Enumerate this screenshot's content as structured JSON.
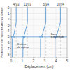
{
  "chart_data": {
    "type": "line",
    "xlabel": "Déplacement (cm)",
    "ylabel": "Profondeur par rapport au terrain naturel",
    "xlim": [
      0,
      5
    ],
    "ylim": [
      8.5,
      0
    ],
    "xticks": [
      0,
      1,
      2,
      3,
      4,
      5
    ],
    "yticks": [
      0,
      1,
      2,
      3,
      4,
      5,
      6,
      7,
      8
    ],
    "x2ticks": [
      {
        "value": 0.45,
        "label": "4/93"
      },
      {
        "value": 1.45,
        "label": "11/93"
      },
      {
        "value": 3.1,
        "label": "6/94"
      },
      {
        "value": 4.4,
        "label": "10/94"
      }
    ],
    "grid": true,
    "reference_line": {
      "y": 5.0,
      "color": "#5b9bd5"
    },
    "annotations": [
      {
        "text": "Surface\nde rupture",
        "x": 0.55,
        "y": 6.1
      },
      {
        "text": "Barre\nd'incertitude",
        "x": 3.55,
        "y": 4.3
      }
    ],
    "series": [
      {
        "color": "#5b9bd5",
        "x": [
          0.45,
          0.45,
          0.45,
          0.45,
          0.45,
          0.45,
          0.4,
          0.35,
          0.3,
          0.25,
          0.15,
          0.1,
          0.1,
          0.1,
          0.1,
          0.1,
          0.1,
          0.1
        ],
        "values": [
          0,
          0.5,
          1.0,
          1.5,
          2.0,
          2.5,
          3.0,
          3.5,
          4.0,
          4.5,
          5.0,
          5.5,
          6.0,
          6.5,
          7.0,
          7.5,
          8.0,
          8.5
        ],
        "error_bar": {
          "x": 0.15,
          "y": 5.0,
          "xerr": 0.12
        }
      },
      {
        "color": "#5b9bd5",
        "x": [
          1.45,
          1.45,
          1.45,
          1.45,
          1.45,
          1.45,
          1.4,
          1.33,
          1.27,
          1.2,
          1.1,
          1.05,
          1.05,
          1.05,
          1.05,
          1.05,
          1.05,
          1.05
        ],
        "values": [
          0,
          0.5,
          1.0,
          1.5,
          2.0,
          2.5,
          3.0,
          3.5,
          4.0,
          4.5,
          5.0,
          5.5,
          6.0,
          6.5,
          7.0,
          7.5,
          8.0,
          8.5
        ],
        "error_bar": {
          "x": 1.1,
          "y": 5.0,
          "xerr": 0.12
        }
      },
      {
        "color": "#5b9bd5",
        "x": [
          3.1,
          3.1,
          3.1,
          3.1,
          3.1,
          3.1,
          3.03,
          2.95,
          2.88,
          2.8,
          2.68,
          2.62,
          2.62,
          2.62,
          2.62,
          2.62,
          2.62,
          2.62
        ],
        "values": [
          0,
          0.5,
          1.0,
          1.5,
          2.0,
          2.5,
          3.0,
          3.5,
          4.0,
          4.5,
          5.0,
          5.5,
          6.0,
          6.5,
          7.0,
          7.5,
          8.0,
          8.5
        ],
        "error_bar": {
          "x": 2.68,
          "y": 5.0,
          "xerr": 0.12
        }
      },
      {
        "color": "#5b9bd5",
        "x": [
          4.4,
          4.4,
          4.4,
          4.4,
          4.4,
          4.4,
          4.33,
          4.25,
          4.18,
          4.1,
          3.98,
          3.92,
          3.92,
          3.92,
          3.92,
          3.92,
          3.92,
          3.92
        ],
        "values": [
          0,
          0.5,
          1.0,
          1.5,
          2.0,
          2.5,
          3.0,
          3.5,
          4.0,
          4.5,
          5.0,
          5.5,
          6.0,
          6.5,
          7.0,
          7.5,
          8.0,
          8.5
        ],
        "error_bar": {
          "x": 3.98,
          "y": 5.0,
          "xerr": 0.12
        }
      }
    ]
  }
}
